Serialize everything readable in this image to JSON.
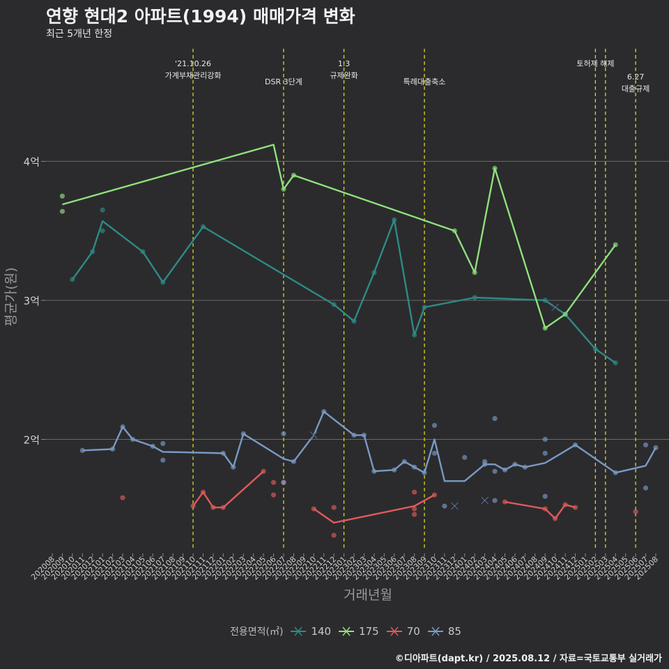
{
  "title": "연향 현대2 아파트(1994) 매매가격 변화",
  "subtitle": "최근 5개년 한정",
  "caption": "©디아파트(dapt.kr) / 2025.08.12 / 자료=국토교통부 실거래가",
  "legend": {
    "title": "전용면적(㎡)",
    "colors": {
      "140": "#2e8b85",
      "175": "#8fe07c",
      "70": "#e05a5a",
      "85": "#7a9ac4"
    }
  },
  "chart_data": {
    "type": "line",
    "xlabel": "거래년월",
    "ylabel": "평균가(원)",
    "ylim": [
      1.2,
      4.85
    ],
    "y_ticks": [
      {
        "value": 2,
        "label": "2억"
      },
      {
        "value": 3,
        "label": "3억"
      },
      {
        "value": 4,
        "label": "4억"
      }
    ],
    "x_categories": [
      "202008",
      "202009",
      "202010",
      "202011",
      "202012",
      "202101",
      "202102",
      "202103",
      "202104",
      "202105",
      "202106",
      "202107",
      "202108",
      "202109",
      "202110",
      "202111",
      "202112",
      "202201",
      "202202",
      "202203",
      "202204",
      "202205",
      "202206",
      "202207",
      "202208",
      "202209",
      "202210",
      "202211",
      "202212",
      "202301",
      "202302",
      "202303",
      "202304",
      "202305",
      "202306",
      "202307",
      "202308",
      "202309",
      "202310",
      "202311",
      "202312",
      "202401",
      "202402",
      "202403",
      "202404",
      "202405",
      "202406",
      "202407",
      "202408",
      "202409",
      "202410",
      "202411",
      "202412",
      "202501",
      "202502",
      "202503",
      "202504",
      "202505",
      "202506",
      "202507",
      "202508"
    ],
    "events": [
      {
        "x": "202110",
        "label": "'21.10.26\n가계부채관리강화",
        "row": 0
      },
      {
        "x": "202207",
        "label": "DSR 3단계",
        "row": 1
      },
      {
        "x": "202301",
        "label": "1.3\n규제완화",
        "row": 0
      },
      {
        "x": "202309",
        "label": "특례대출축소",
        "row": 1
      },
      {
        "x": "202502",
        "label": "토허제 해제",
        "row": 0
      },
      {
        "x": "202503",
        "label": "",
        "row": 0
      },
      {
        "x": "202506",
        "label": "6.27\n대출규제",
        "row": 2
      }
    ],
    "series": [
      {
        "name": "140",
        "color": "#2e8b85",
        "line": [
          [
            "202010",
            3.15
          ],
          [
            "202012",
            3.35
          ],
          [
            "202101",
            3.57
          ],
          [
            "202105",
            3.35
          ],
          [
            "202107",
            3.13
          ],
          [
            "202111",
            3.53
          ],
          [
            "202212",
            2.97
          ],
          [
            "202302",
            2.85
          ],
          [
            "202304",
            3.2
          ],
          [
            "202306",
            3.58
          ],
          [
            "202308",
            2.75
          ],
          [
            "202309",
            2.95
          ],
          [
            "202402",
            3.02
          ],
          [
            "202409",
            3.0
          ],
          [
            "202411",
            2.9
          ],
          [
            "202502",
            2.65
          ],
          [
            "202504",
            2.55
          ]
        ],
        "points": [
          [
            "202010",
            3.15
          ],
          [
            "202012",
            3.35
          ],
          [
            "202101",
            3.65
          ],
          [
            "202101",
            3.5
          ],
          [
            "202105",
            3.35
          ],
          [
            "202107",
            3.13
          ],
          [
            "202111",
            3.53
          ],
          [
            "202212",
            2.97
          ],
          [
            "202302",
            2.85
          ],
          [
            "202304",
            3.2
          ],
          [
            "202306",
            3.58
          ],
          [
            "202308",
            2.75
          ],
          [
            "202309",
            2.95
          ],
          [
            "202402",
            3.02
          ],
          [
            "202409",
            3.0
          ],
          [
            "202411",
            2.9
          ],
          [
            "202502",
            2.65
          ],
          [
            "202504",
            2.55
          ]
        ],
        "crosses": []
      },
      {
        "name": "175",
        "color": "#8fe07c",
        "line": [
          [
            "202009",
            3.69
          ],
          [
            "202206",
            4.12
          ],
          [
            "202207",
            3.8
          ],
          [
            "202208",
            3.9
          ],
          [
            "202312",
            3.5
          ],
          [
            "202402",
            3.2
          ],
          [
            "202404",
            3.95
          ],
          [
            "202409",
            2.8
          ],
          [
            "202411",
            2.9
          ],
          [
            "202504",
            3.4
          ]
        ],
        "points": [
          [
            "202009",
            3.75
          ],
          [
            "202009",
            3.64
          ],
          [
            "202207",
            3.8
          ],
          [
            "202208",
            3.9
          ],
          [
            "202312",
            3.5
          ],
          [
            "202402",
            3.2
          ],
          [
            "202404",
            3.95
          ],
          [
            "202409",
            2.8
          ],
          [
            "202411",
            2.9
          ],
          [
            "202504",
            3.4
          ]
        ],
        "crosses": []
      },
      {
        "name": "70",
        "color": "#e05a5a",
        "line": [
          [
            "202110",
            1.52
          ],
          [
            "202111",
            1.62
          ],
          [
            "202112",
            1.51
          ],
          [
            "202201",
            1.51
          ],
          [
            "202205",
            1.77
          ],
          null,
          [
            "202210",
            1.5
          ],
          [
            "202212",
            1.4
          ],
          [
            "202308",
            1.52
          ],
          [
            "202310",
            1.6
          ],
          null,
          [
            "202405",
            1.55
          ],
          [
            "202409",
            1.5
          ],
          [
            "202410",
            1.43
          ],
          [
            "202411",
            1.53
          ],
          [
            "202412",
            1.51
          ]
        ],
        "points": [
          [
            "202103",
            1.58
          ],
          [
            "202110",
            1.52
          ],
          [
            "202111",
            1.62
          ],
          [
            "202112",
            1.51
          ],
          [
            "202201",
            1.51
          ],
          [
            "202205",
            1.77
          ],
          [
            "202206",
            1.69
          ],
          [
            "202206",
            1.6
          ],
          [
            "202207",
            1.69
          ],
          [
            "202210",
            1.5
          ],
          [
            "202212",
            1.51
          ],
          [
            "202212",
            1.31
          ],
          [
            "202308",
            1.62
          ],
          [
            "202308",
            1.5
          ],
          [
            "202308",
            1.46
          ],
          [
            "202310",
            1.6
          ],
          [
            "202405",
            1.55
          ],
          [
            "202409",
            1.5
          ],
          [
            "202410",
            1.43
          ],
          [
            "202411",
            1.53
          ],
          [
            "202412",
            1.51
          ],
          [
            "202506",
            1.48
          ]
        ],
        "crosses": []
      },
      {
        "name": "85",
        "color": "#7a9ac4",
        "line": [
          [
            "202011",
            1.92
          ],
          [
            "202102",
            1.93
          ],
          [
            "202103",
            2.09
          ],
          [
            "202104",
            2.0
          ],
          [
            "202106",
            1.95
          ],
          [
            "202107",
            1.91
          ],
          [
            "202201",
            1.9
          ],
          [
            "202202",
            1.8
          ],
          [
            "202203",
            2.04
          ],
          [
            "202207",
            1.86
          ],
          [
            "202208",
            1.84
          ],
          [
            "202210",
            2.03
          ],
          [
            "202211",
            2.2
          ],
          [
            "202302",
            2.03
          ],
          [
            "202303",
            2.03
          ],
          [
            "202304",
            1.77
          ],
          [
            "202306",
            1.78
          ],
          [
            "202307",
            1.84
          ],
          [
            "202308",
            1.8
          ],
          [
            "202309",
            1.76
          ],
          [
            "202310",
            2.0
          ],
          [
            "202311",
            1.7
          ],
          [
            "202401",
            1.7
          ],
          [
            "202403",
            1.82
          ],
          [
            "202404",
            1.82
          ],
          [
            "202405",
            1.78
          ],
          [
            "202406",
            1.82
          ],
          [
            "202407",
            1.8
          ],
          [
            "202409",
            1.83
          ],
          [
            "202412",
            1.96
          ],
          [
            "202504",
            1.76
          ],
          [
            "202507",
            1.81
          ],
          [
            "202508",
            1.94
          ]
        ],
        "points": [
          [
            "202011",
            1.92
          ],
          [
            "202102",
            1.93
          ],
          [
            "202103",
            2.09
          ],
          [
            "202104",
            2.0
          ],
          [
            "202106",
            1.95
          ],
          [
            "202107",
            1.97
          ],
          [
            "202107",
            1.85
          ],
          [
            "202201",
            1.9
          ],
          [
            "202202",
            1.8
          ],
          [
            "202203",
            2.04
          ],
          [
            "202207",
            2.04
          ],
          [
            "202207",
            1.69
          ],
          [
            "202208",
            1.84
          ],
          [
            "202211",
            2.2
          ],
          [
            "202302",
            2.03
          ],
          [
            "202303",
            2.03
          ],
          [
            "202304",
            1.77
          ],
          [
            "202306",
            1.78
          ],
          [
            "202307",
            1.84
          ],
          [
            "202308",
            1.8
          ],
          [
            "202309",
            1.76
          ],
          [
            "202310",
            2.1
          ],
          [
            "202310",
            1.9
          ],
          [
            "202311",
            1.52
          ],
          [
            "202401",
            1.87
          ],
          [
            "202403",
            1.84
          ],
          [
            "202403",
            1.82
          ],
          [
            "202404",
            2.15
          ],
          [
            "202404",
            1.77
          ],
          [
            "202404",
            1.56
          ],
          [
            "202405",
            1.78
          ],
          [
            "202406",
            1.82
          ],
          [
            "202407",
            1.8
          ],
          [
            "202409",
            2.0
          ],
          [
            "202409",
            1.9
          ],
          [
            "202409",
            1.59
          ],
          [
            "202412",
            1.96
          ],
          [
            "202504",
            1.76
          ],
          [
            "202507",
            1.96
          ],
          [
            "202507",
            1.65
          ],
          [
            "202508",
            1.94
          ]
        ],
        "crosses": [
          [
            "202210",
            2.03
          ],
          [
            "202312",
            1.52
          ],
          [
            "202403",
            1.56
          ],
          [
            "202410",
            2.95
          ]
        ]
      }
    ]
  }
}
